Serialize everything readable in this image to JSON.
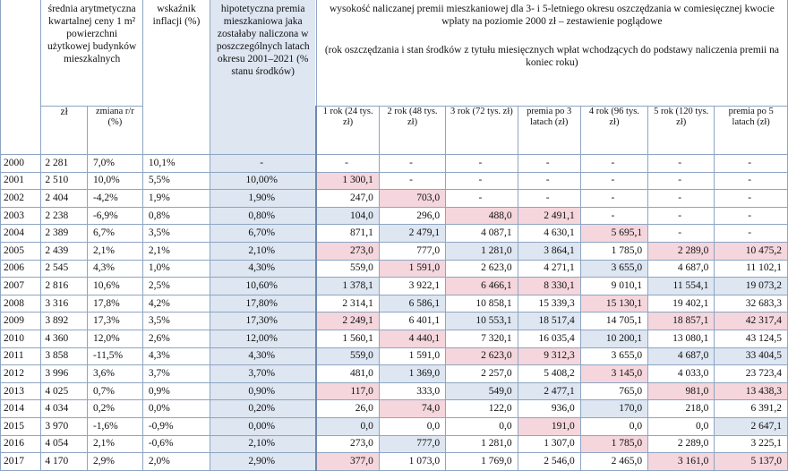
{
  "header": {
    "avg_price": "średnia arytmetyczna kwartalnej ceny 1 m² powierzchni użytkowej budynków mieszkalnych",
    "price_zl": "zł",
    "price_change": "zmiana r/r (%)",
    "inflation": "wskaźnik inflacji (%)",
    "hypo_premium": "hipotetyczna premia mieszkaniowa jaka zostałaby naliczona w poszczególnych latach okresu 2001–2021 (% stanu środków)",
    "premium_title": "wysokość naliczanej premii mieszkaniowej dla 3- i 5-letniego okresu oszczędzania w comiesięcznej kwocie wpłaty na poziomie 2000 zł – zestawienie poglądowe",
    "premium_sub": "(rok oszczędzania i stan środków z tytułu miesięcznych wpłat wchodzących do podstawy naliczenia premii na koniec roku)",
    "cols": [
      "1 rok (24 tys. zł)",
      "2 rok (48 tys. zł)",
      "3 rok (72 tys. zł)",
      "premia po 3 latach (zł)",
      "4 rok (96 tys. zł)",
      "5 rok (120 tys. zł)",
      "premia po 5 latach (zł)"
    ]
  },
  "rows": [
    {
      "year": "2000",
      "price": "2 281",
      "change": "7,0%",
      "infl": "10,1%",
      "hyp": "-",
      "v": [
        "-",
        "-",
        "-",
        "-",
        "-",
        "-",
        "-"
      ]
    },
    {
      "year": "2001",
      "price": "2 510",
      "change": "10,0%",
      "infl": "5,5%",
      "hyp": "10,00%",
      "v": [
        "1 300,1",
        "-",
        "-",
        "-",
        "-",
        "-",
        "-"
      ]
    },
    {
      "year": "2002",
      "price": "2 404",
      "change": "-4,2%",
      "infl": "1,9%",
      "hyp": "1,90%",
      "v": [
        "247,0",
        "703,0",
        "-",
        "-",
        "-",
        "-",
        "-"
      ]
    },
    {
      "year": "2003",
      "price": "2 238",
      "change": "-6,9%",
      "infl": "0,8%",
      "hyp": "0,80%",
      "v": [
        "104,0",
        "296,0",
        "488,0",
        "2 491,1",
        "-",
        "-",
        "-"
      ]
    },
    {
      "year": "2004",
      "price": "2 389",
      "change": "6,7%",
      "infl": "3,5%",
      "hyp": "6,70%",
      "v": [
        "871,1",
        "2 479,1",
        "4 087,1",
        "4 630,1",
        "5 695,1",
        "-",
        "-"
      ]
    },
    {
      "year": "2005",
      "price": "2 439",
      "change": "2,1%",
      "infl": "2,1%",
      "hyp": "2,10%",
      "v": [
        "273,0",
        "777,0",
        "1 281,0",
        "3 864,1",
        "1 785,0",
        "2 289,0",
        "10 475,2"
      ]
    },
    {
      "year": "2006",
      "price": "2 545",
      "change": "4,3%",
      "infl": "1,0%",
      "hyp": "4,30%",
      "v": [
        "559,0",
        "1 591,0",
        "2 623,0",
        "4 271,1",
        "3 655,0",
        "4 687,0",
        "11 102,1"
      ]
    },
    {
      "year": "2007",
      "price": "2 816",
      "change": "10,6%",
      "infl": "2,5%",
      "hyp": "10,60%",
      "v": [
        "1 378,1",
        "3 922,1",
        "6 466,1",
        "8 330,1",
        "9 010,1",
        "11 554,1",
        "19 073,2"
      ]
    },
    {
      "year": "2008",
      "price": "3 316",
      "change": "17,8%",
      "infl": "4,2%",
      "hyp": "17,80%",
      "v": [
        "2 314,1",
        "6 586,1",
        "10 858,1",
        "15 339,3",
        "15 130,1",
        "19 402,1",
        "32 683,3"
      ]
    },
    {
      "year": "2009",
      "price": "3 892",
      "change": "17,3%",
      "infl": "3,5%",
      "hyp": "17,30%",
      "v": [
        "2 249,1",
        "6 401,1",
        "10 553,1",
        "18 517,4",
        "14 705,1",
        "18 857,1",
        "42 317,4"
      ]
    },
    {
      "year": "2010",
      "price": "4 360",
      "change": "12,0%",
      "infl": "2,6%",
      "hyp": "12,00%",
      "v": [
        "1 560,1",
        "4 440,1",
        "7 320,1",
        "16 035,4",
        "10 200,1",
        "13 080,1",
        "43 124,5"
      ]
    },
    {
      "year": "2011",
      "price": "3 858",
      "change": "-11,5%",
      "infl": "4,3%",
      "hyp": "4,30%",
      "v": [
        "559,0",
        "1 591,0",
        "2 623,0",
        "9 312,3",
        "3 655,0",
        "4 687,0",
        "33 404,5"
      ]
    },
    {
      "year": "2012",
      "price": "3 996",
      "change": "3,6%",
      "infl": "3,7%",
      "hyp": "3,70%",
      "v": [
        "481,0",
        "1 369,0",
        "2 257,0",
        "5 408,2",
        "3 145,0",
        "4 033,0",
        "23 723,4"
      ]
    },
    {
      "year": "2013",
      "price": "4 025",
      "change": "0,7%",
      "infl": "0,9%",
      "hyp": "0,90%",
      "v": [
        "117,0",
        "333,0",
        "549,0",
        "2 477,1",
        "765,0",
        "981,0",
        "13 438,3"
      ]
    },
    {
      "year": "2014",
      "price": "4 034",
      "change": "0,2%",
      "infl": "0,0%",
      "hyp": "0,20%",
      "v": [
        "26,0",
        "74,0",
        "122,0",
        "936,0",
        "170,0",
        "218,0",
        "6 391,2"
      ]
    },
    {
      "year": "2015",
      "price": "3 970",
      "change": "-1,6%",
      "infl": "-0,9%",
      "hyp": "0,00%",
      "v": [
        "0,0",
        "0,0",
        "0,0",
        "191,0",
        "0,0",
        "0,0",
        "2 647,1"
      ]
    },
    {
      "year": "2016",
      "price": "4 054",
      "change": "2,1%",
      "infl": "-0,6%",
      "hyp": "2,10%",
      "v": [
        "273,0",
        "777,0",
        "1 281,0",
        "1 307,0",
        "1 785,0",
        "2 289,0",
        "3 225,1"
      ]
    },
    {
      "year": "2017",
      "price": "4 170",
      "change": "2,9%",
      "infl": "2,0%",
      "hyp": "2,90%",
      "v": [
        "377,0",
        "1 073,0",
        "1 769,0",
        "2 546,0",
        "2 465,0",
        "3 161,0",
        "5 137,0"
      ]
    }
  ]
}
